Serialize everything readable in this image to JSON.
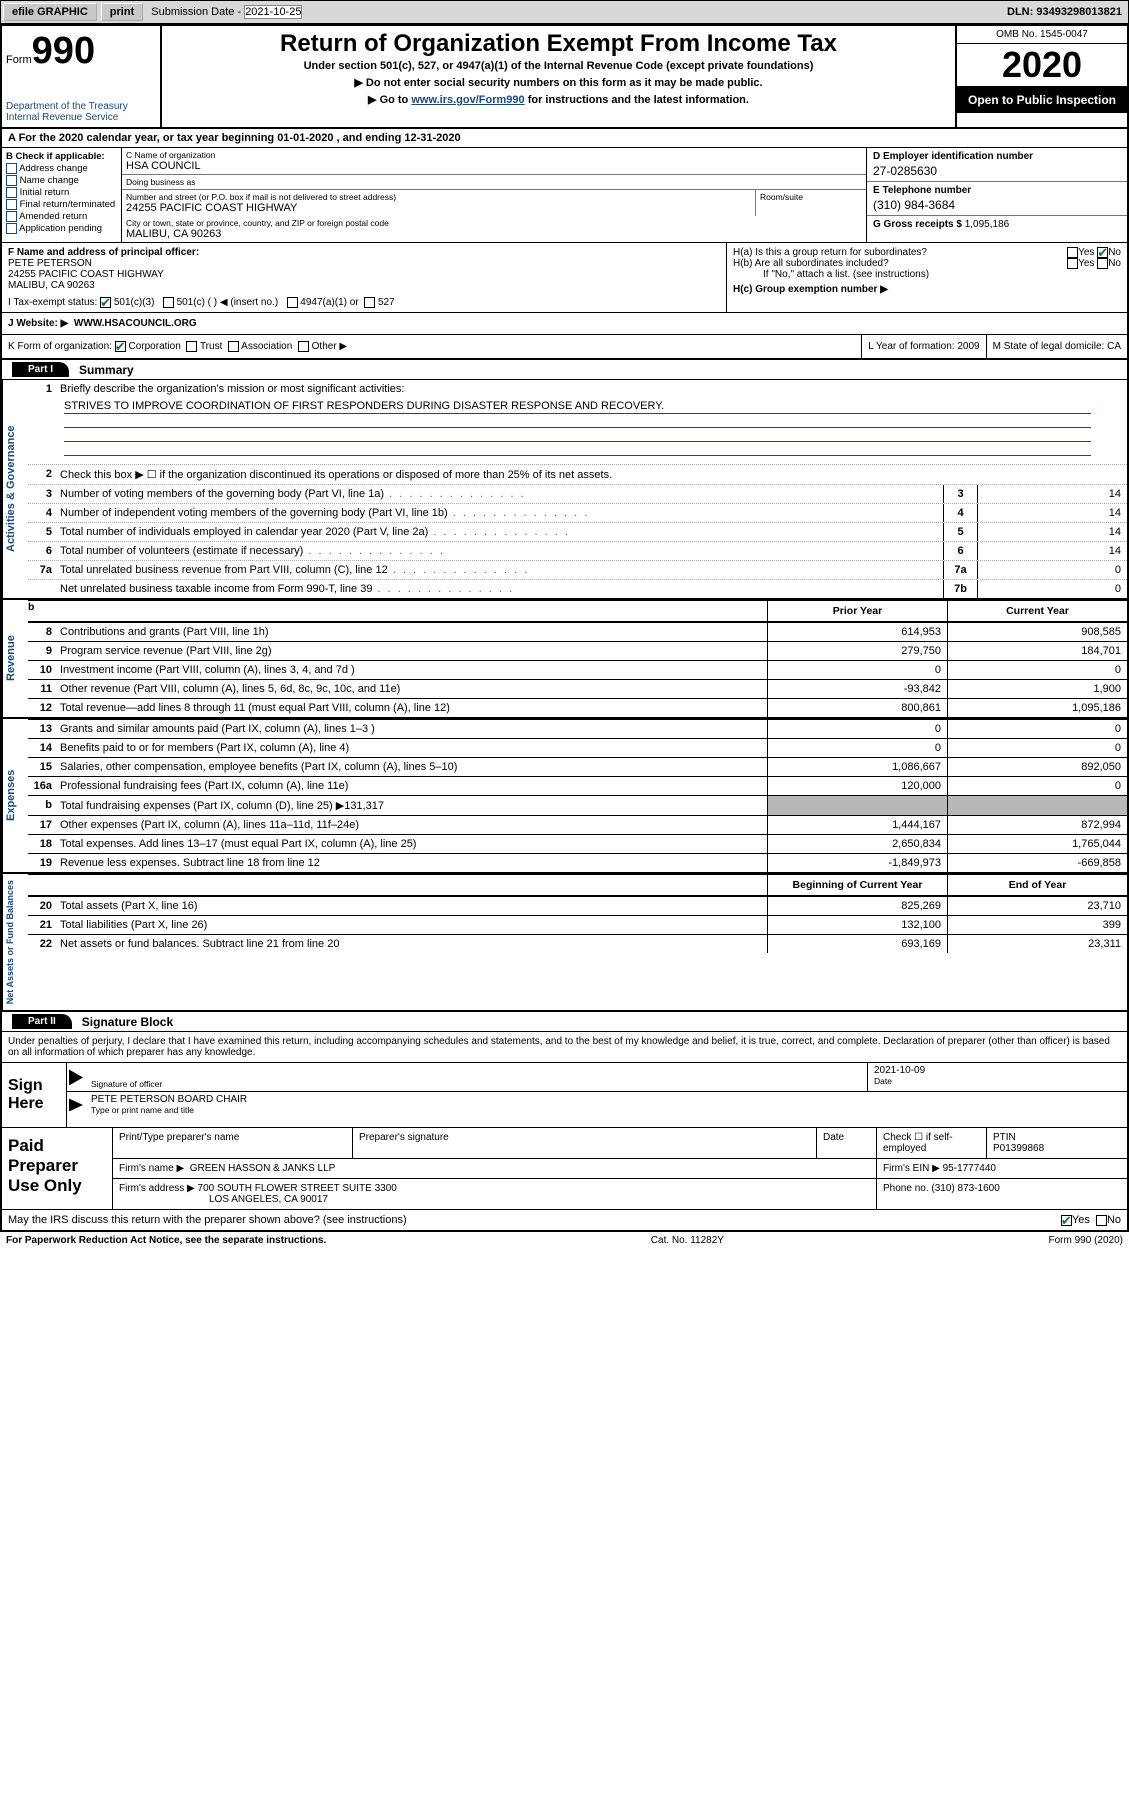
{
  "topbar": {
    "efile": "efile GRAPHIC",
    "print": "print",
    "submission_lbl": "Submission Date - ",
    "submission_date": "2021-10-25",
    "dln_lbl": "DLN: ",
    "dln": "93493298013821"
  },
  "header": {
    "form_word": "Form",
    "form_num": "990",
    "dept": "Department of the Treasury\nInternal Revenue Service",
    "title": "Return of Organization Exempt From Income Tax",
    "sub1": "Under section 501(c), 527, or 4947(a)(1) of the Internal Revenue Code (except private foundations)",
    "sub2a": "Do not enter social security numbers on this form as it may be made public.",
    "sub2b_pre": "Go to ",
    "sub2b_link": "www.irs.gov/Form990",
    "sub2b_post": " for instructions and the latest information.",
    "omb": "OMB No. 1545-0047",
    "year": "2020",
    "open": "Open to Public Inspection"
  },
  "row_a": "A For the 2020 calendar year, or tax year beginning 01-01-2020   , and ending 12-31-2020",
  "col_b": {
    "head": "B Check if applicable:",
    "opts": [
      "Address change",
      "Name change",
      "Initial return",
      "Final return/terminated",
      "Amended return",
      "Application pending"
    ]
  },
  "col_c": {
    "name_lbl": "C Name of organization",
    "name": "HSA COUNCIL",
    "dba_lbl": "Doing business as",
    "dba": "",
    "addr_lbl": "Number and street (or P.O. box if mail is not delivered to street address)",
    "addr": "24255 PACIFIC COAST HIGHWAY",
    "suite_lbl": "Room/suite",
    "suite": "",
    "city_lbl": "City or town, state or province, country, and ZIP or foreign postal code",
    "city": "MALIBU, CA  90263"
  },
  "col_de": {
    "d_lbl": "D Employer identification number",
    "d_val": "27-0285630",
    "e_lbl": "E Telephone number",
    "e_val": "(310) 984-3684",
    "g_lbl": "G Gross receipts $ ",
    "g_val": "1,095,186"
  },
  "sec_f": {
    "lbl": "F Name and address of principal officer:",
    "name": "PETE PETERSON",
    "addr": "24255 PACIFIC COAST HIGHWAY\nMALIBU, CA  90263"
  },
  "sec_h": {
    "ha_lbl": "H(a)  Is this a group return for subordinates?",
    "hb_lbl": "H(b)  Are all subordinates included?",
    "hb_note": "If \"No,\" attach a list. (see instructions)",
    "hc_lbl": "H(c)  Group exemption number ▶"
  },
  "row_i": {
    "lbl": "I   Tax-exempt status:",
    "o1": "501(c)(3)",
    "o2": "501(c) (  ) ◀ (insert no.)",
    "o3": "4947(a)(1) or",
    "o4": "527"
  },
  "row_j": {
    "lbl": "J   Website: ▶",
    "val": "WWW.HSACOUNCIL.ORG"
  },
  "row_k": {
    "lbl": "K Form of organization:",
    "opts": [
      "Corporation",
      "Trust",
      "Association",
      "Other ▶"
    ],
    "l": "L Year of formation: 2009",
    "m": "M State of legal domicile: CA"
  },
  "part1": {
    "tab": "Part I",
    "title": "Summary",
    "side_ag": "Activities & Governance",
    "q1": "Briefly describe the organization's mission or most significant activities:",
    "mission": "STRIVES TO IMPROVE COORDINATION OF FIRST RESPONDERS DURING DISASTER RESPONSE AND RECOVERY.",
    "q2": "Check this box ▶ ☐  if the organization discontinued its operations or disposed of more than 25% of its net assets.",
    "lines": [
      {
        "n": "3",
        "t": "Number of voting members of the governing body (Part VI, line 1a)",
        "c": "3",
        "v": "14"
      },
      {
        "n": "4",
        "t": "Number of independent voting members of the governing body (Part VI, line 1b)",
        "c": "4",
        "v": "14"
      },
      {
        "n": "5",
        "t": "Total number of individuals employed in calendar year 2020 (Part V, line 2a)",
        "c": "5",
        "v": "14"
      },
      {
        "n": "6",
        "t": "Total number of volunteers (estimate if necessary)",
        "c": "6",
        "v": "14"
      },
      {
        "n": "7a",
        "t": "Total unrelated business revenue from Part VIII, column (C), line 12",
        "c": "7a",
        "v": "0"
      },
      {
        "n": "",
        "t": "Net unrelated business taxable income from Form 990-T, line 39",
        "c": "7b",
        "v": "0"
      }
    ]
  },
  "rev": {
    "side": "Revenue",
    "head_b": "b",
    "col_py": "Prior Year",
    "col_cy": "Current Year",
    "rows": [
      {
        "n": "8",
        "t": "Contributions and grants (Part VIII, line 1h)",
        "p": "614,953",
        "c": "908,585"
      },
      {
        "n": "9",
        "t": "Program service revenue (Part VIII, line 2g)",
        "p": "279,750",
        "c": "184,701"
      },
      {
        "n": "10",
        "t": "Investment income (Part VIII, column (A), lines 3, 4, and 7d )",
        "p": "0",
        "c": "0"
      },
      {
        "n": "11",
        "t": "Other revenue (Part VIII, column (A), lines 5, 6d, 8c, 9c, 10c, and 11e)",
        "p": "-93,842",
        "c": "1,900"
      },
      {
        "n": "12",
        "t": "Total revenue—add lines 8 through 11 (must equal Part VIII, column (A), line 12)",
        "p": "800,861",
        "c": "1,095,186"
      }
    ]
  },
  "exp": {
    "side": "Expenses",
    "rows": [
      {
        "n": "13",
        "t": "Grants and similar amounts paid (Part IX, column (A), lines 1–3 )",
        "p": "0",
        "c": "0"
      },
      {
        "n": "14",
        "t": "Benefits paid to or for members (Part IX, column (A), line 4)",
        "p": "0",
        "c": "0"
      },
      {
        "n": "15",
        "t": "Salaries, other compensation, employee benefits (Part IX, column (A), lines 5–10)",
        "p": "1,086,667",
        "c": "892,050"
      },
      {
        "n": "16a",
        "t": "Professional fundraising fees (Part IX, column (A), line 11e)",
        "p": "120,000",
        "c": "0"
      },
      {
        "n": "b",
        "t": "Total fundraising expenses (Part IX, column (D), line 25) ▶131,317",
        "p": "",
        "c": "",
        "shade": true
      },
      {
        "n": "17",
        "t": "Other expenses (Part IX, column (A), lines 11a–11d, 11f–24e)",
        "p": "1,444,167",
        "c": "872,994"
      },
      {
        "n": "18",
        "t": "Total expenses. Add lines 13–17 (must equal Part IX, column (A), line 25)",
        "p": "2,650,834",
        "c": "1,765,044"
      },
      {
        "n": "19",
        "t": "Revenue less expenses. Subtract line 18 from line 12",
        "p": "-1,849,973",
        "c": "-669,858"
      }
    ]
  },
  "na": {
    "side": "Net Assets or Fund Balances",
    "col_b": "Beginning of Current Year",
    "col_e": "End of Year",
    "rows": [
      {
        "n": "20",
        "t": "Total assets (Part X, line 16)",
        "p": "825,269",
        "c": "23,710"
      },
      {
        "n": "21",
        "t": "Total liabilities (Part X, line 26)",
        "p": "132,100",
        "c": "399"
      },
      {
        "n": "22",
        "t": "Net assets or fund balances. Subtract line 21 from line 20",
        "p": "693,169",
        "c": "23,311"
      }
    ]
  },
  "part2": {
    "tab": "Part II",
    "title": "Signature Block"
  },
  "decl": "Under penalties of perjury, I declare that I have examined this return, including accompanying schedules and statements, and to the best of my knowledge and belief, it is true, correct, and complete. Declaration of preparer (other than officer) is based on all information of which preparer has any knowledge.",
  "sign": {
    "lbl": "Sign Here",
    "sig_lbl": "Signature of officer",
    "date_lbl": "Date",
    "date": "2021-10-09",
    "name": "PETE PETERSON  BOARD CHAIR",
    "name_lbl": "Type or print name and title"
  },
  "paid": {
    "lbl": "Paid Preparer Use Only",
    "h1": "Print/Type preparer's name",
    "h2": "Preparer's signature",
    "h3": "Date",
    "h4": "Check ☐ if self-employed",
    "h5_lbl": "PTIN",
    "h5": "P01399868",
    "firm_lbl": "Firm's name   ▶",
    "firm": "GREEN HASSON & JANKS LLP",
    "ein_lbl": "Firm's EIN ▶",
    "ein": "95-1777440",
    "addr_lbl": "Firm's address ▶",
    "addr1": "700 SOUTH FLOWER STREET SUITE 3300",
    "addr2": "LOS ANGELES, CA  90017",
    "phone_lbl": "Phone no.",
    "phone": "(310) 873-1600"
  },
  "irs_q": "May the IRS discuss this return with the preparer shown above? (see instructions)",
  "footer": {
    "l": "For Paperwork Reduction Act Notice, see the separate instructions.",
    "m": "Cat. No. 11282Y",
    "r": "Form 990 (2020)"
  }
}
